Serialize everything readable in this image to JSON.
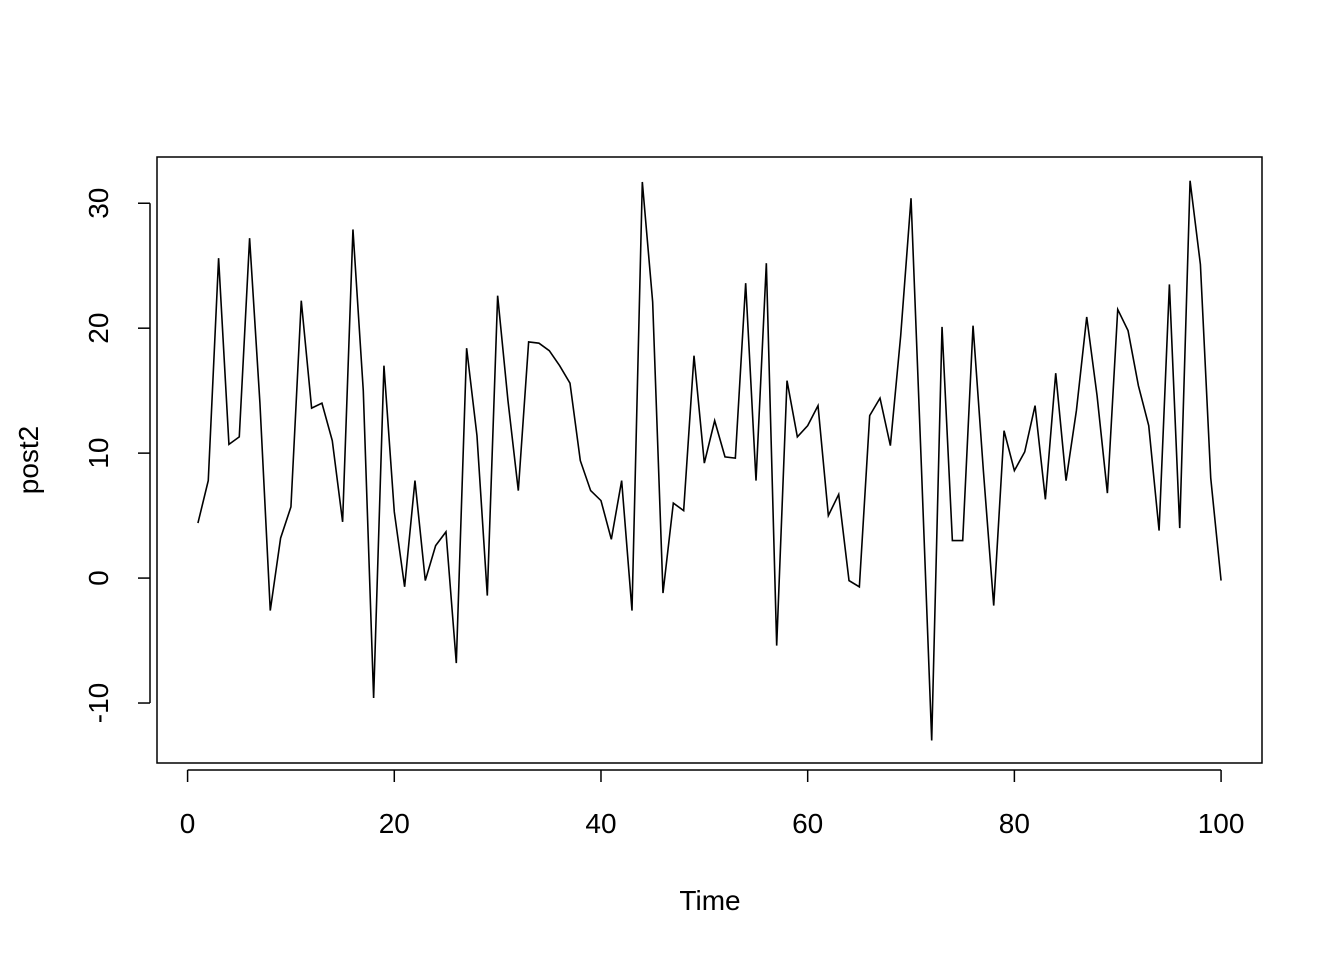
{
  "chart_data": {
    "type": "line",
    "xlabel": "Time",
    "ylabel": "post2",
    "x": [
      1,
      2,
      3,
      4,
      5,
      6,
      7,
      8,
      9,
      10,
      11,
      12,
      13,
      14,
      15,
      16,
      17,
      18,
      19,
      20,
      21,
      22,
      23,
      24,
      25,
      26,
      27,
      28,
      29,
      30,
      31,
      32,
      33,
      34,
      35,
      36,
      37,
      38,
      39,
      40,
      41,
      42,
      43,
      44,
      45,
      46,
      47,
      48,
      49,
      50,
      51,
      52,
      53,
      54,
      55,
      56,
      57,
      58,
      59,
      60,
      61,
      62,
      63,
      64,
      65,
      66,
      67,
      68,
      69,
      70,
      71,
      72,
      73,
      74,
      75,
      76,
      77,
      78,
      79,
      80,
      81,
      82,
      83,
      84,
      85,
      86,
      87,
      88,
      89,
      90,
      91,
      92,
      93,
      94,
      95,
      96,
      97,
      98,
      99,
      100
    ],
    "values": [
      4.4,
      7.8,
      25.6,
      10.7,
      11.3,
      27.2,
      14,
      -2.6,
      3.2,
      5.7,
      22.2,
      13.6,
      14.0,
      11.0,
      4.5,
      27.9,
      15.0,
      -9.6,
      17.0,
      5.3,
      -0.7,
      7.8,
      -0.2,
      2.6,
      3.7,
      -6.8,
      18.4,
      11.4,
      -1.4,
      22.6,
      14.2,
      7.0,
      18.9,
      18.8,
      18.2,
      17.0,
      15.6,
      9.4,
      7.0,
      6.2,
      3.1,
      7.8,
      -2.6,
      31.7,
      22.1,
      -1.2,
      6.0,
      5.4,
      17.8,
      9.2,
      12.6,
      9.7,
      9.6,
      23.6,
      7.8,
      25.2,
      -5.4,
      15.8,
      11.3,
      12.2,
      13.8,
      5.0,
      6.7,
      -0.2,
      -0.7,
      13.0,
      14.4,
      10.6,
      19.4,
      30.4,
      9,
      -13.0,
      20.1,
      3.0,
      3.0,
      20.2,
      8.6,
      -2.2,
      11.8,
      8.6,
      10.1,
      13.8,
      6.3,
      16.4,
      7.8,
      13.4,
      20.9,
      14.6,
      6.8,
      21.5,
      19.8,
      15.4,
      12.2,
      3.8,
      23.5,
      4.0,
      31.8,
      25.1,
      8.0,
      -0.2
    ],
    "color": "#000000",
    "xlim": [
      -2.96,
      103.96
    ],
    "xticks": [
      0,
      20,
      40,
      60,
      80,
      100
    ],
    "ylim": [
      -14.8,
      33.7
    ],
    "yticks": [
      -10,
      0,
      10,
      20,
      30
    ]
  }
}
